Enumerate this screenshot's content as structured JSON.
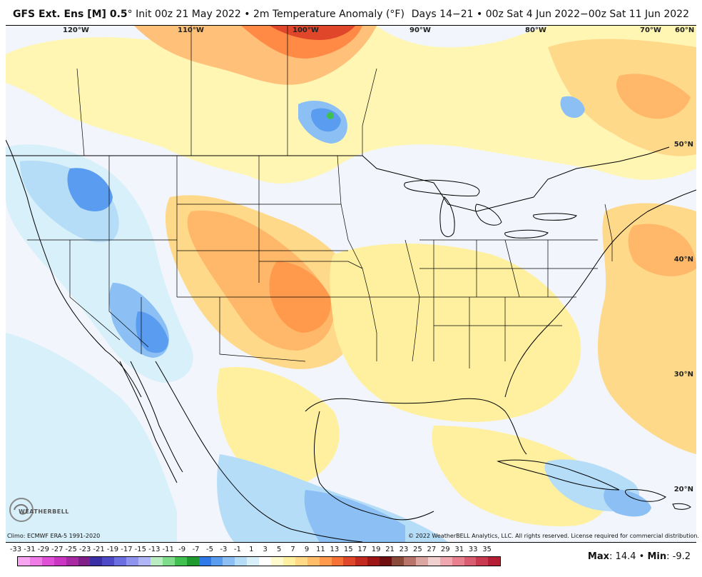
{
  "header": {
    "model": "GFS Ext.  Ens [M] 0.5",
    "degree": "°",
    "init_text": " Init 00z 21 May 2022 • 2m Temperature Anomaly (°F)",
    "valid_text": "Days 14−21 • 00z Sat 4 Jun 2022−00z Sat 11 Jun 2022"
  },
  "longitude_labels": [
    "120°W",
    "110°W",
    "100°W",
    "90°W",
    "80°W",
    "70°W",
    "60°N"
  ],
  "latitude_labels": [
    "50°N",
    "40°N",
    "30°N",
    "20°N"
  ],
  "footer": {
    "climo": "Climo: ECMWF ERA-5 1991-2020",
    "copyright": "© 2022 WeatherBELL Analytics, LLC. All rights reserved. License required for commercial distribution.",
    "logo_text": "WEATHERBELL"
  },
  "colorbar": {
    "labels": [
      "-33",
      "-31",
      "-29",
      "-27",
      "-25",
      "-23",
      "-21",
      "-19",
      "-17",
      "-15",
      "-13",
      "-11",
      "-9",
      "-7",
      "-5",
      "-3",
      "-1",
      "1",
      "3",
      "5",
      "7",
      "9",
      "11",
      "13",
      "15",
      "17",
      "19",
      "21",
      "23",
      "25",
      "27",
      "29",
      "31",
      "33",
      "35"
    ],
    "colors": [
      "#f7a5f0",
      "#ee7be6",
      "#e050d6",
      "#c936c2",
      "#a72aa3",
      "#7f1f87",
      "#3b2fa6",
      "#4d49c7",
      "#6b6ee0",
      "#8f93ee",
      "#b0b6f5",
      "#b9ecc0",
      "#7fdc8a",
      "#3fc04f",
      "#1e9a2e",
      "#2f7ae8",
      "#5a9cf0",
      "#8cc0f5",
      "#b5ddf7",
      "#d8f0fa",
      "#ffffff",
      "#fffbcf",
      "#fff0a0",
      "#ffd985",
      "#ffbd6a",
      "#ff9a4c",
      "#f57135",
      "#e0462a",
      "#c32a1f",
      "#9d1515",
      "#6e0e0e",
      "#8a4a3a",
      "#b8736a",
      "#dca6a0",
      "#f2cfcf",
      "#f0a8b0",
      "#e88090",
      "#d95c70",
      "#c93a50",
      "#b51f35"
    ]
  },
  "stats": {
    "max_label": "Max",
    "max_value": "14.4",
    "min_label": "Min",
    "min_value": "-9.2",
    "separator": "•"
  }
}
